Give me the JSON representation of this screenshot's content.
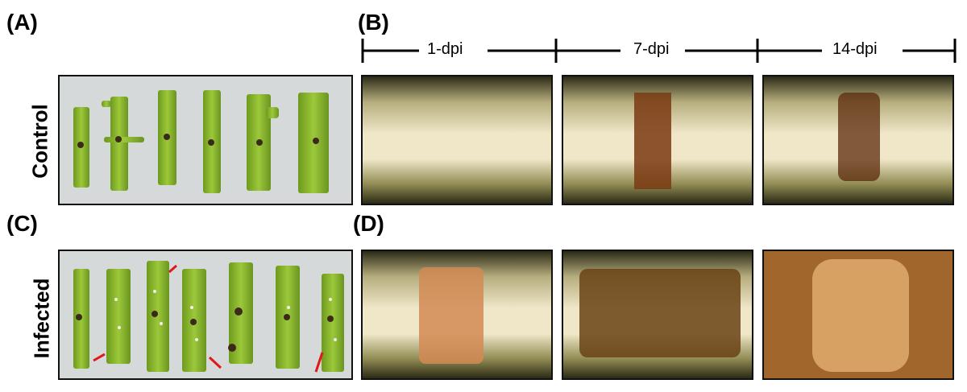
{
  "panels": {
    "a": "(A)",
    "b": "(B)",
    "c": "(C)",
    "d": "(D)"
  },
  "rows": {
    "control": "Control",
    "infected": "Infected"
  },
  "timeline": {
    "t1": "1-dpi",
    "t2": "7-dpi",
    "t3": "14-dpi"
  }
}
